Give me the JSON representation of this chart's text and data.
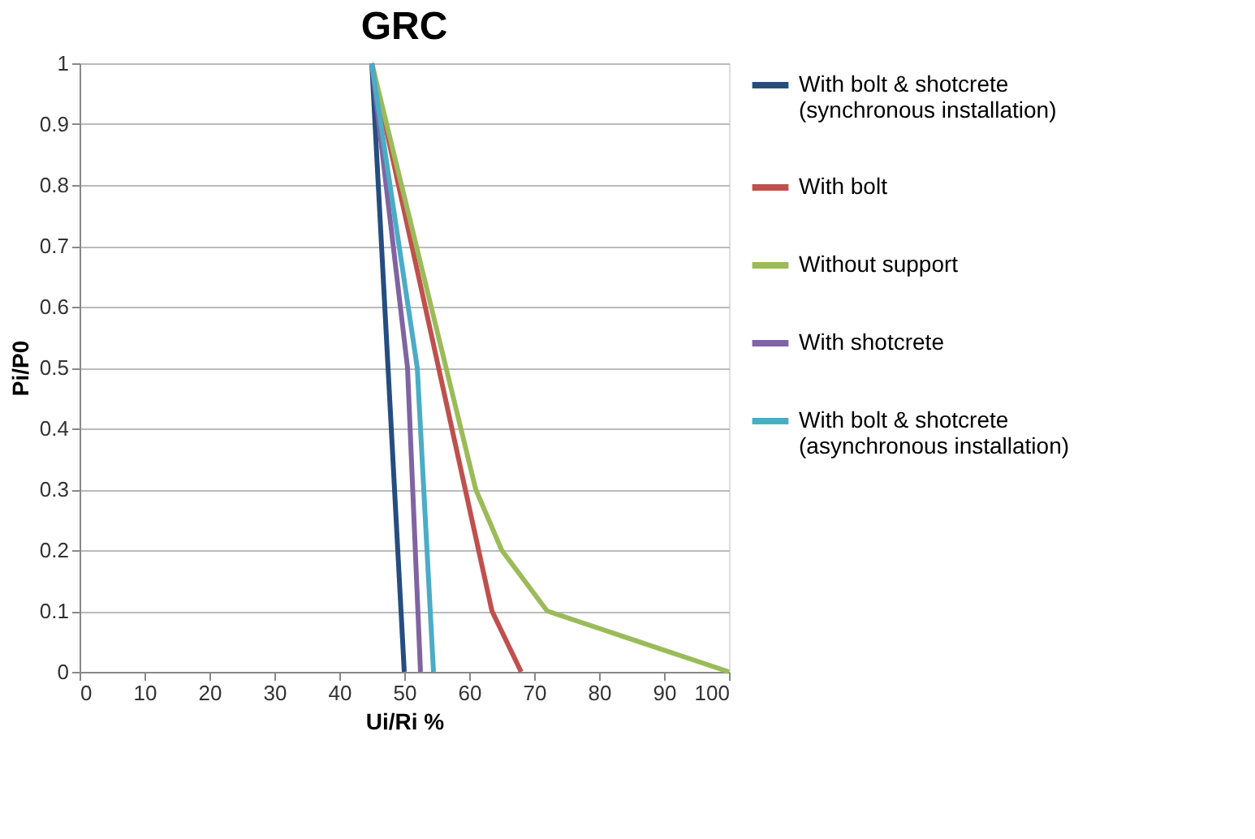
{
  "chart_data": {
    "type": "line",
    "title": "GRC",
    "xlabel": "Ui/Ri %",
    "ylabel": "Pi/P0",
    "xlim": [
      0,
      100
    ],
    "xticks": [
      0,
      10,
      20,
      30,
      40,
      50,
      60,
      70,
      80,
      90,
      100
    ],
    "ylim": [
      0,
      1
    ],
    "yticks": [
      0,
      0.1,
      0.2,
      0.3,
      0.4,
      0.5,
      0.6,
      0.7,
      0.8,
      0.9,
      1
    ],
    "grid": "y",
    "legend": "right",
    "marker": "none",
    "line_style": "solid",
    "series": [
      {
        "name": "With bolt & shotcrete\n(synchronous installation)",
        "color": "#264d80",
        "x": [
          45,
          50
        ],
        "values": [
          1,
          0
        ]
      },
      {
        "name": "With bolt",
        "color": "#c0504d",
        "x": [
          45,
          63.5,
          68
        ],
        "values": [
          1,
          0.1,
          0
        ]
      },
      {
        "name": "Without support",
        "color": "#9bbb59",
        "x": [
          45,
          61,
          65,
          72,
          100
        ],
        "values": [
          1,
          0.3,
          0.2,
          0.1,
          0
        ]
      },
      {
        "name": "With shotcrete",
        "color": "#8064a2",
        "x": [
          45,
          50.5,
          52.5
        ],
        "values": [
          1,
          0.5,
          0
        ]
      },
      {
        "name": "With bolt & shotcrete\n(asynchronous installation)",
        "color": "#4bacc6",
        "x": [
          45,
          52,
          54.5
        ],
        "values": [
          1,
          0.5,
          0
        ]
      }
    ]
  }
}
